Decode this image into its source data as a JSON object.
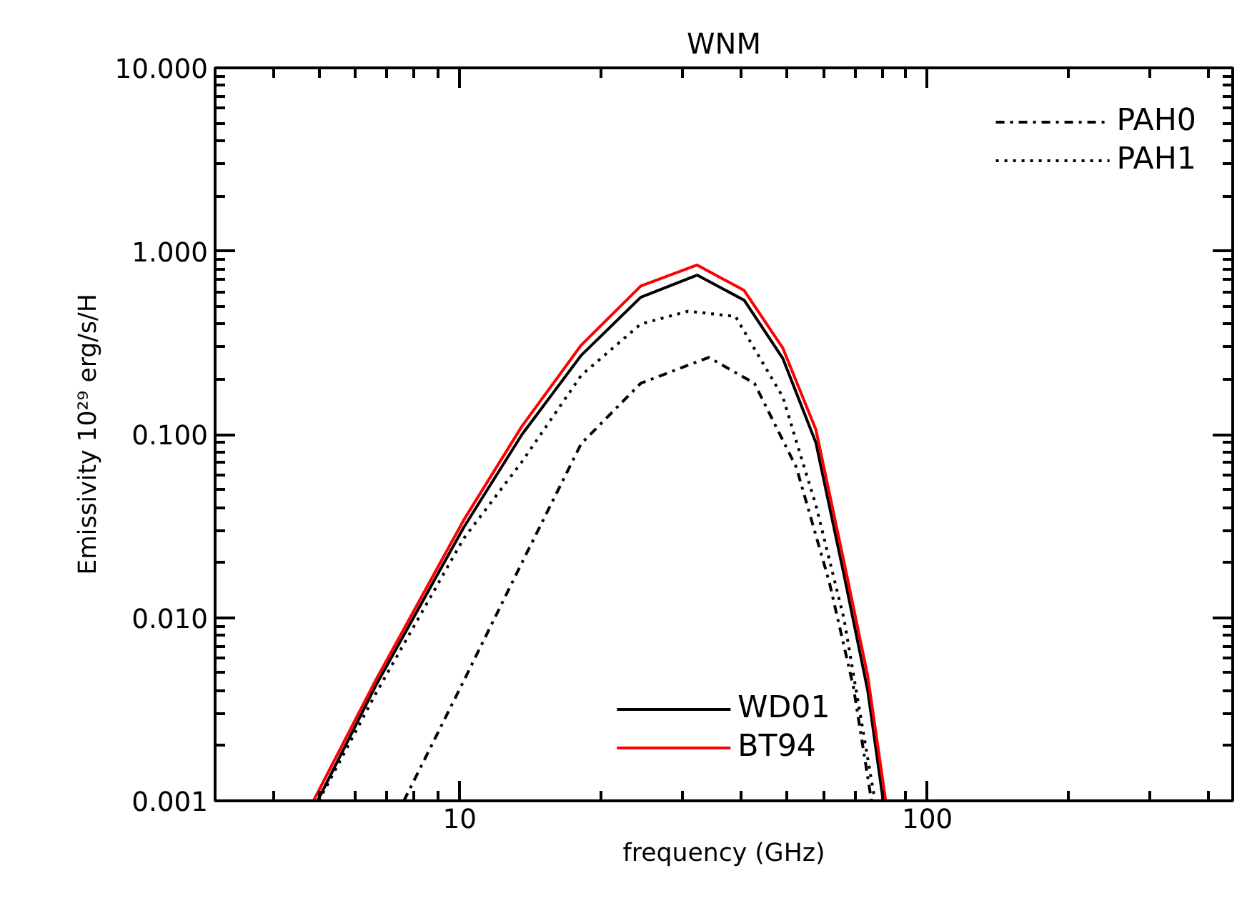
{
  "chart_data": {
    "type": "line",
    "title": "WNM",
    "xlabel": "frequency (GHz)",
    "ylabel": "Emissivity 10²⁹ erg/s/H",
    "log": "xy",
    "grid": false,
    "legend": "top right",
    "xlim": [
      3,
      450
    ],
    "ylim": [
      0.001,
      10
    ],
    "xticks": [
      {
        "value": 3,
        "label": null
      },
      {
        "value": 4,
        "label": null
      },
      {
        "value": 5,
        "label": null
      },
      {
        "value": 6,
        "label": null
      },
      {
        "value": 7,
        "label": null
      },
      {
        "value": 8,
        "label": null
      },
      {
        "value": 9,
        "label": null
      },
      {
        "value": 10,
        "label": "10"
      },
      {
        "value": 20,
        "label": null
      },
      {
        "value": 30,
        "label": null
      },
      {
        "value": 40,
        "label": null
      },
      {
        "value": 50,
        "label": null
      },
      {
        "value": 60,
        "label": null
      },
      {
        "value": 70,
        "label": null
      },
      {
        "value": 80,
        "label": null
      },
      {
        "value": 90,
        "label": null
      },
      {
        "value": 100,
        "label": "100"
      },
      {
        "value": 200,
        "label": null
      },
      {
        "value": 300,
        "label": null
      },
      {
        "value": 400,
        "label": null
      }
    ],
    "yticks": [
      {
        "value": 0.001,
        "label": "0.001"
      },
      {
        "value": 0.002,
        "label": null
      },
      {
        "value": 0.003,
        "label": null
      },
      {
        "value": 0.004,
        "label": null
      },
      {
        "value": 0.005,
        "label": null
      },
      {
        "value": 0.006,
        "label": null
      },
      {
        "value": 0.007,
        "label": null
      },
      {
        "value": 0.008,
        "label": null
      },
      {
        "value": 0.009,
        "label": null
      },
      {
        "value": 0.01,
        "label": "0.010"
      },
      {
        "value": 0.02,
        "label": null
      },
      {
        "value": 0.03,
        "label": null
      },
      {
        "value": 0.04,
        "label": null
      },
      {
        "value": 0.05,
        "label": null
      },
      {
        "value": 0.06,
        "label": null
      },
      {
        "value": 0.07,
        "label": null
      },
      {
        "value": 0.08,
        "label": null
      },
      {
        "value": 0.09,
        "label": null
      },
      {
        "value": 0.1,
        "label": "0.100"
      },
      {
        "value": 0.2,
        "label": null
      },
      {
        "value": 0.3,
        "label": null
      },
      {
        "value": 0.4,
        "label": null
      },
      {
        "value": 0.5,
        "label": null
      },
      {
        "value": 0.6,
        "label": null
      },
      {
        "value": 0.7,
        "label": null
      },
      {
        "value": 0.8,
        "label": null
      },
      {
        "value": 0.9,
        "label": null
      },
      {
        "value": 1,
        "label": "1.000"
      },
      {
        "value": 2,
        "label": null
      },
      {
        "value": 3,
        "label": null
      },
      {
        "value": 4,
        "label": null
      },
      {
        "value": 5,
        "label": null
      },
      {
        "value": 6,
        "label": null
      },
      {
        "value": 7,
        "label": null
      },
      {
        "value": 8,
        "label": null
      },
      {
        "value": 9,
        "label": null
      },
      {
        "value": 10,
        "label": "10.000"
      }
    ],
    "series": [
      {
        "name": "PAH0",
        "color": "#000000",
        "line_style": "dashdot",
        "x": [
          7.6,
          10.2,
          13.6,
          18.2,
          24.4,
          34.1,
          42.7,
          52.5,
          61.7,
          69.5,
          76
        ],
        "values": [
          0.001,
          0.0045,
          0.02,
          0.089,
          0.19,
          0.263,
          0.19,
          0.066,
          0.0157,
          0.0042,
          0.001
        ]
      },
      {
        "name": "PAH1",
        "color": "#000000",
        "line_style": "dotted",
        "x": [
          5.0,
          6.6,
          10.2,
          13.6,
          18.2,
          24.4,
          30.8,
          38.9,
          49.1,
          57.8,
          66.4,
          77.3
        ],
        "values": [
          0.001,
          0.0038,
          0.027,
          0.071,
          0.21,
          0.4,
          0.47,
          0.44,
          0.16,
          0.041,
          0.0098,
          0.001
        ]
      },
      {
        "name": "WD01",
        "color": "#000000",
        "line_style": "solid",
        "x": [
          4.97,
          6.6,
          10.2,
          13.6,
          18.2,
          24.4,
          32.2,
          40.6,
          49.1,
          57.8,
          66.4,
          74.6,
          80.5
        ],
        "values": [
          0.001,
          0.0042,
          0.031,
          0.1,
          0.27,
          0.56,
          0.74,
          0.54,
          0.26,
          0.09,
          0.017,
          0.004,
          0.001
        ]
      },
      {
        "name": "BT94",
        "color": "#ff0000",
        "line_style": "solid",
        "x": [
          4.87,
          6.6,
          10.2,
          13.6,
          18.2,
          24.4,
          32.2,
          40.6,
          49.1,
          57.8,
          66.4,
          74.6,
          81.5
        ],
        "values": [
          0.001,
          0.0045,
          0.034,
          0.111,
          0.307,
          0.645,
          0.84,
          0.61,
          0.296,
          0.106,
          0.02,
          0.0048,
          0.001
        ]
      }
    ]
  }
}
